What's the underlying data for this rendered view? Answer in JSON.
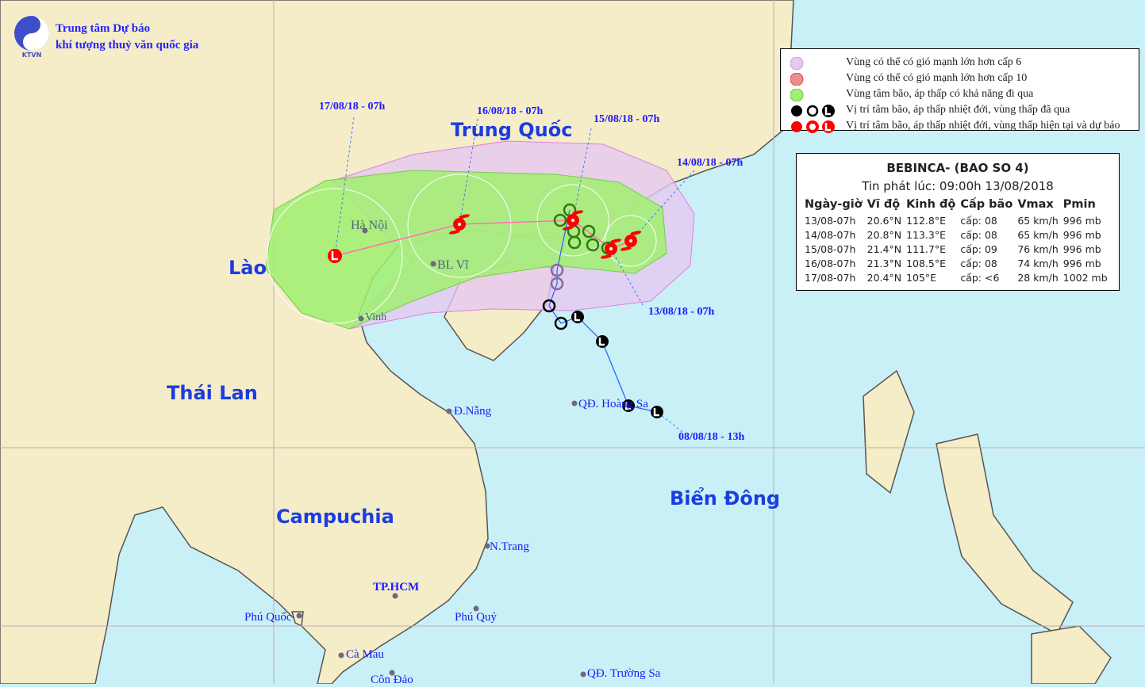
{
  "header": {
    "logo_text": "KTVN",
    "org_line1": "Trung tâm Dự báo",
    "org_line2": "khí tượng thuỷ văn quốc gia"
  },
  "legend": {
    "items": [
      {
        "symbol": "purple-circle",
        "color": "#e6c8f0",
        "label": "Vùng có thể có gió mạnh lớn hơn cấp 6"
      },
      {
        "symbol": "red-circle",
        "color": "#f08c8c",
        "label": "Vùng có thể có gió mạnh lớn hơn cấp 10"
      },
      {
        "symbol": "green-circle",
        "color": "#a0f070",
        "label": "Vùng tâm bão, áp thấp có khả năng đi qua"
      },
      {
        "symbol": "black-storm-circle-low",
        "color": "#000000",
        "label": "Vị trí tâm bão, áp thấp nhiệt đới, vùng thấp đã qua"
      },
      {
        "symbol": "red-storm-circle-low",
        "color": "#ff0000",
        "label": "Vị trí tâm bão, áp thấp nhiệt đới, vùng thấp hiện tại và dự báo"
      }
    ]
  },
  "info": {
    "title": "BEBINCA- (BAO SO 4)",
    "issued": "Tin phát lúc: 09:00h 13/08/2018",
    "columns": [
      "Ngày-giờ",
      "Vĩ độ",
      "Kinh độ",
      "Cấp bão",
      "Vmax",
      "Pmin"
    ],
    "rows": [
      [
        "13/08-07h",
        "20.6°N",
        "112.8°E",
        "cấp: 08",
        "65 km/h",
        "996 mb"
      ],
      [
        "14/08-07h",
        "20.8°N",
        "113.3°E",
        "cấp: 08",
        "65 km/h",
        "996 mb"
      ],
      [
        "15/08-07h",
        "21.4°N",
        "111.7°E",
        "cấp: 09",
        "76 km/h",
        "996 mb"
      ],
      [
        "16/08-07h",
        "21.3°N",
        "108.5°E",
        "cấp: 08",
        "74 km/h",
        "996 mb"
      ],
      [
        "17/08-07h",
        "20.4°N",
        "105°E",
        "cấp: <6",
        "28 km/h",
        "1002 mb"
      ]
    ]
  },
  "map": {
    "countries": {
      "china": "Trung Quốc",
      "laos": "Lào",
      "thailand": "Thái Lan",
      "cambodia": "Campuchia",
      "sea": "Biển Đông"
    },
    "cities": {
      "hanoi": "Hà Nội",
      "blvi": "BL Vĩ",
      "vinh": "Vinh",
      "danang": "Đ.Nẵng",
      "hoangsa": "QĐ. Hoàng Sa",
      "nhatrang": "N.Trang",
      "hcm": "TP.HCM",
      "phuquoc": "Phú Quốc",
      "phuquy": "Phú Quý",
      "camau": "Cà Mau",
      "condao": "Côn Đảo",
      "truongsa": "QĐ. Trường Sa"
    },
    "dates": {
      "d17": "17/08/18 - 07h",
      "d16": "16/08/18 - 07h",
      "d15": "15/08/18 - 07h",
      "d14": "14/08/18 - 07h",
      "d13": "13/08/18 - 07h",
      "d08": "08/08/18 - 13h"
    },
    "colors": {
      "sea": "#c9f0f7",
      "land": "#f5ecc8",
      "zone_cap6": "#e6c8f0",
      "zone_track": "#a0f070",
      "forecast": "#ff0000",
      "past": "#000000"
    }
  }
}
